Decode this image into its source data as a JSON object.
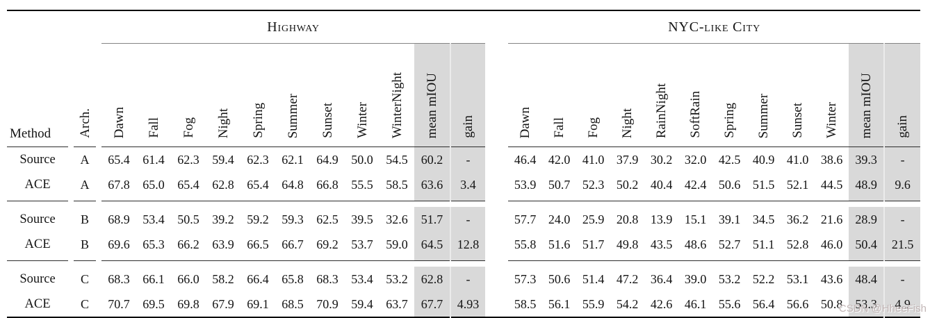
{
  "table": {
    "col_method": "Method",
    "col_arch": "Arch.",
    "groups": [
      {
        "label": "Highway",
        "columns": [
          "Dawn",
          "Fall",
          "Fog",
          "Night",
          "Spring",
          "Summer",
          "Sunset",
          "Winter",
          "WinterNight",
          "mean mIOU",
          "gain"
        ]
      },
      {
        "label": "NYC-like City",
        "columns": [
          "Dawn",
          "Fall",
          "Fog",
          "Night",
          "RainNight",
          "SoftRain",
          "Spring",
          "Summer",
          "Sunset",
          "Winter",
          "mean mIOU",
          "gain"
        ]
      }
    ],
    "rows": [
      {
        "method": "Source",
        "arch": "A",
        "highway": [
          "65.4",
          "61.4",
          "62.3",
          "59.4",
          "62.3",
          "62.1",
          "64.9",
          "50.0",
          "54.5",
          "60.2",
          "-"
        ],
        "nyc": [
          "46.4",
          "42.0",
          "41.0",
          "37.9",
          "30.2",
          "32.0",
          "42.5",
          "40.9",
          "41.0",
          "38.6",
          "39.3",
          "-"
        ]
      },
      {
        "method": "ACE",
        "arch": "A",
        "highway": [
          "67.8",
          "65.0",
          "65.4",
          "62.8",
          "65.4",
          "64.8",
          "66.8",
          "55.5",
          "58.5",
          "63.6",
          "3.4"
        ],
        "nyc": [
          "53.9",
          "50.7",
          "52.3",
          "50.2",
          "40.4",
          "42.4",
          "50.6",
          "51.5",
          "52.1",
          "44.5",
          "48.9",
          "9.6"
        ]
      },
      {
        "method": "Source",
        "arch": "B",
        "highway": [
          "68.9",
          "53.4",
          "50.5",
          "39.2",
          "59.2",
          "59.3",
          "62.5",
          "39.5",
          "32.6",
          "51.7",
          "-"
        ],
        "nyc": [
          "57.7",
          "24.0",
          "25.9",
          "20.8",
          "13.9",
          "15.1",
          "39.1",
          "34.5",
          "36.2",
          "21.6",
          "28.9",
          "-"
        ]
      },
      {
        "method": "ACE",
        "arch": "B",
        "highway": [
          "69.6",
          "65.3",
          "66.2",
          "63.9",
          "66.5",
          "66.7",
          "69.2",
          "53.7",
          "59.0",
          "64.5",
          "12.8"
        ],
        "nyc": [
          "55.8",
          "51.6",
          "51.7",
          "49.8",
          "43.5",
          "48.6",
          "52.7",
          "51.1",
          "52.8",
          "46.0",
          "50.4",
          "21.5"
        ]
      },
      {
        "method": "Source",
        "arch": "C",
        "highway": [
          "68.3",
          "66.1",
          "66.0",
          "58.2",
          "66.4",
          "65.8",
          "68.3",
          "53.4",
          "53.2",
          "62.8",
          "-"
        ],
        "nyc": [
          "57.3",
          "50.6",
          "51.4",
          "47.2",
          "36.4",
          "39.0",
          "53.2",
          "52.2",
          "53.1",
          "43.6",
          "48.4",
          "-"
        ]
      },
      {
        "method": "ACE",
        "arch": "C",
        "highway": [
          "70.7",
          "69.5",
          "69.8",
          "67.9",
          "69.1",
          "68.5",
          "70.9",
          "59.4",
          "63.7",
          "67.7",
          "4.93"
        ],
        "nyc": [
          "58.5",
          "56.1",
          "55.9",
          "54.2",
          "42.6",
          "46.1",
          "55.6",
          "56.4",
          "56.6",
          "50.8",
          "53.3",
          "4.9"
        ]
      }
    ],
    "colors": {
      "shading": "#d9d9d9",
      "rule": "#000000"
    },
    "watermark": "CSDN @HheeFish"
  }
}
